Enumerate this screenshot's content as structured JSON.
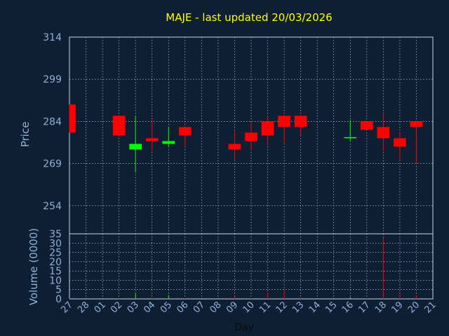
{
  "chart_data": {
    "type": "candlestick",
    "title": "MAJE - last updated 20/03/2026",
    "xlabel": "Day",
    "price_ylabel": "Price",
    "volume_ylabel": "Volume (0000)",
    "x_ticks": [
      "27",
      "28",
      "01",
      "02",
      "03",
      "04",
      "05",
      "06",
      "07",
      "08",
      "09",
      "10",
      "11",
      "12",
      "13",
      "14",
      "15",
      "16",
      "17",
      "18",
      "19",
      "20",
      "21"
    ],
    "price_ylim": [
      244,
      314
    ],
    "price_ticks": [
      314,
      299,
      284,
      269,
      254
    ],
    "volume_ylim": [
      0,
      35
    ],
    "volume_ticks": [
      35,
      30,
      25,
      20,
      15,
      10,
      5,
      0
    ],
    "candles": [
      {
        "day": "27",
        "open": 290,
        "high": 290,
        "low": 280,
        "close": 280,
        "volume": 0.3
      },
      {
        "day": "02",
        "open": 286,
        "high": 286,
        "low": 278.5,
        "close": 279,
        "volume": 0.5
      },
      {
        "day": "03",
        "open": 274,
        "high": 286,
        "low": 266,
        "close": 276,
        "volume": 3
      },
      {
        "day": "04",
        "open": 278,
        "high": 284.5,
        "low": 273.5,
        "close": 277,
        "volume": 0.6
      },
      {
        "day": "05",
        "open": 276,
        "high": 282,
        "low": 275,
        "close": 277,
        "volume": 2
      },
      {
        "day": "06",
        "open": 282,
        "high": 282,
        "low": 275,
        "close": 279,
        "volume": 0.4
      },
      {
        "day": "09",
        "open": 276,
        "high": 280.5,
        "low": 270,
        "close": 274,
        "volume": 1.5
      },
      {
        "day": "10",
        "open": 280,
        "high": 283.5,
        "low": 274,
        "close": 277,
        "volume": 0.5
      },
      {
        "day": "11",
        "open": 284,
        "high": 286,
        "low": 275.5,
        "close": 279,
        "volume": 3.5
      },
      {
        "day": "12",
        "open": 286,
        "high": 286,
        "low": 276,
        "close": 282,
        "volume": 5
      },
      {
        "day": "13",
        "open": 286,
        "high": 286,
        "low": 279,
        "close": 282,
        "volume": 0.5
      },
      {
        "day": "16",
        "open": 278,
        "high": 284.5,
        "low": 277,
        "close": 278.4,
        "volume": 1
      },
      {
        "day": "17",
        "open": 284,
        "high": 284,
        "low": 281,
        "close": 281,
        "volume": 0.4
      },
      {
        "day": "18",
        "open": 282,
        "high": 286.5,
        "low": 273.5,
        "close": 278,
        "volume": 33
      },
      {
        "day": "19",
        "open": 278,
        "high": 280,
        "low": 270,
        "close": 275,
        "volume": 2.5
      },
      {
        "day": "20",
        "open": 284,
        "high": 284,
        "low": 269,
        "close": 282,
        "volume": 2
      }
    ],
    "colors": {
      "up": "#00ff00",
      "down": "#ff0000",
      "background": "#0f1f33",
      "plot_background": "#0f1f33",
      "title": "#ffff00",
      "labels": "#8fb0d8"
    },
    "grid": true
  }
}
